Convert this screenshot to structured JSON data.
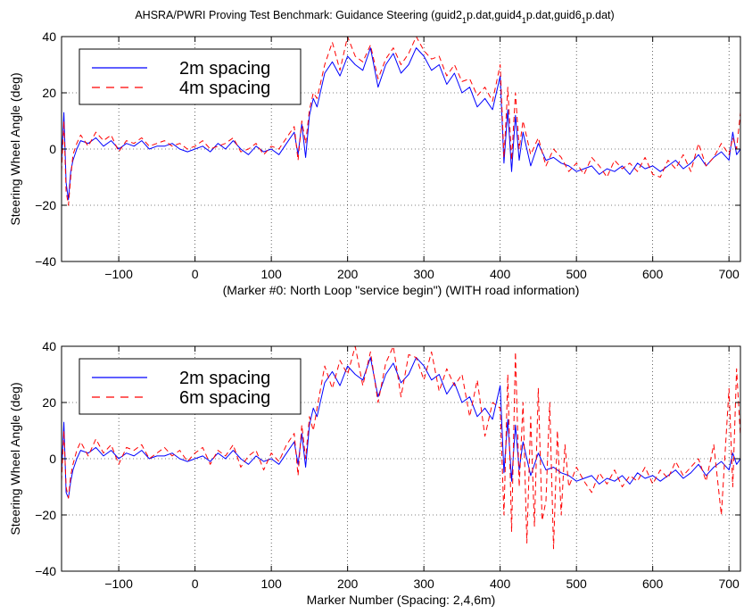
{
  "figure": {
    "title_parts": [
      "AHSRA/PWRI Proving Test Benchmark: Guidance Steering (guid2",
      "1",
      "p.dat,guid4",
      "1",
      "p.dat,guid6",
      "1",
      "p.dat)"
    ]
  },
  "chart_data": [
    {
      "type": "line",
      "xlabel": "(Marker #0: North Loop \"service begin\") (WITH road information)",
      "ylabel": "Steering Wheel Angle (deg)",
      "xlim": [
        -175,
        715
      ],
      "ylim": [
        -40,
        40
      ],
      "xticks": [
        -100,
        0,
        100,
        200,
        300,
        400,
        500,
        600,
        700
      ],
      "yticks": [
        -40,
        -20,
        0,
        20,
        40
      ],
      "tick_labels_x": [
        "−100",
        "0",
        "100",
        "200",
        "300",
        "400",
        "500",
        "600",
        "700"
      ],
      "tick_labels_y": [
        "−40",
        "−20",
        "0",
        "20",
        "40"
      ],
      "grid": true,
      "legend_position": "top-left",
      "series": [
        {
          "name": "2m spacing",
          "color": "#0000ff",
          "style": "solid",
          "x": [
            -175,
            -172,
            -169,
            -166,
            -163,
            -160,
            -155,
            -150,
            -140,
            -130,
            -120,
            -110,
            -100,
            -90,
            -80,
            -70,
            -60,
            -50,
            -40,
            -30,
            -20,
            -10,
            0,
            10,
            20,
            30,
            40,
            50,
            60,
            70,
            80,
            90,
            100,
            110,
            120,
            130,
            135,
            140,
            145,
            150,
            155,
            160,
            170,
            180,
            190,
            200,
            210,
            220,
            230,
            240,
            250,
            260,
            270,
            280,
            290,
            300,
            310,
            320,
            330,
            340,
            350,
            360,
            370,
            380,
            390,
            400,
            405,
            410,
            415,
            420,
            425,
            430,
            440,
            450,
            460,
            470,
            480,
            490,
            500,
            510,
            520,
            530,
            540,
            550,
            560,
            570,
            580,
            590,
            600,
            610,
            620,
            630,
            640,
            650,
            660,
            670,
            680,
            690,
            700,
            705,
            710,
            715
          ],
          "y": [
            -5,
            13,
            -12,
            -18,
            -8,
            -4,
            0,
            3,
            2,
            4,
            1,
            3,
            0,
            2,
            1,
            3,
            0,
            1,
            1,
            2,
            0,
            -1,
            0,
            1,
            -1,
            2,
            0,
            3,
            0,
            -2,
            1,
            -1,
            0,
            -2,
            2,
            6,
            -2,
            9,
            -3,
            12,
            18,
            15,
            27,
            31,
            26,
            33,
            30,
            28,
            36,
            22,
            30,
            34,
            27,
            30,
            36,
            33,
            28,
            30,
            23,
            27,
            20,
            22,
            15,
            18,
            14,
            26,
            -5,
            14,
            -8,
            12,
            -4,
            6,
            -6,
            2,
            -4,
            -3,
            -5,
            -6,
            -8,
            -7,
            -6,
            -9,
            -7,
            -8,
            -6,
            -9,
            -5,
            -7,
            -6,
            -8,
            -6,
            -4,
            -7,
            -5,
            -2,
            -6,
            -3,
            -1,
            -4,
            6,
            -2,
            0
          ]
        },
        {
          "name": "4m spacing",
          "color": "#ff0000",
          "style": "dashed",
          "x": [
            -175,
            -172,
            -169,
            -166,
            -163,
            -160,
            -155,
            -150,
            -140,
            -130,
            -120,
            -110,
            -100,
            -90,
            -80,
            -70,
            -60,
            -50,
            -40,
            -30,
            -20,
            -10,
            0,
            10,
            20,
            30,
            40,
            50,
            60,
            70,
            80,
            90,
            100,
            110,
            120,
            130,
            135,
            140,
            145,
            150,
            155,
            160,
            170,
            180,
            190,
            200,
            210,
            220,
            230,
            240,
            250,
            260,
            270,
            280,
            290,
            300,
            310,
            320,
            330,
            340,
            350,
            360,
            370,
            380,
            390,
            400,
            405,
            410,
            415,
            420,
            425,
            430,
            440,
            450,
            460,
            470,
            480,
            490,
            500,
            510,
            520,
            530,
            540,
            550,
            560,
            570,
            580,
            590,
            600,
            610,
            620,
            630,
            640,
            650,
            660,
            670,
            680,
            690,
            700,
            705,
            710,
            715
          ],
          "y": [
            -8,
            10,
            -15,
            -20,
            -10,
            -2,
            2,
            5,
            1,
            6,
            3,
            5,
            -1,
            3,
            2,
            4,
            1,
            2,
            3,
            1,
            2,
            0,
            1,
            3,
            0,
            1,
            2,
            4,
            -1,
            0,
            2,
            -2,
            1,
            0,
            4,
            8,
            -4,
            10,
            2,
            14,
            20,
            18,
            30,
            38,
            28,
            40,
            33,
            31,
            37,
            25,
            32,
            36,
            30,
            34,
            40,
            35,
            32,
            33,
            26,
            30,
            24,
            25,
            19,
            22,
            17,
            30,
            -3,
            22,
            -4,
            20,
            0,
            10,
            -2,
            4,
            -6,
            0,
            -3,
            -8,
            -5,
            -9,
            -3,
            -6,
            -10,
            -4,
            -7,
            -5,
            -8,
            -3,
            -9,
            -10,
            -4,
            -7,
            -2,
            -8,
            2,
            -6,
            -3,
            2,
            -2,
            4,
            0,
            13
          ]
        }
      ]
    },
    {
      "type": "line",
      "xlabel": "Marker Number (Spacing: 2,4,6m)",
      "ylabel": "Steering Wheel Angle (deg)",
      "xlim": [
        -175,
        715
      ],
      "ylim": [
        -40,
        40
      ],
      "xticks": [
        -100,
        0,
        100,
        200,
        300,
        400,
        500,
        600,
        700
      ],
      "yticks": [
        -40,
        -20,
        0,
        20,
        40
      ],
      "tick_labels_x": [
        "−100",
        "0",
        "100",
        "200",
        "300",
        "400",
        "500",
        "600",
        "700"
      ],
      "tick_labels_y": [
        "−40",
        "−20",
        "0",
        "20",
        "40"
      ],
      "grid": true,
      "legend_position": "top-left",
      "series": [
        {
          "name": "2m spacing",
          "color": "#0000ff",
          "style": "solid",
          "x": [
            -175,
            -172,
            -169,
            -166,
            -163,
            -160,
            -155,
            -150,
            -140,
            -130,
            -120,
            -110,
            -100,
            -90,
            -80,
            -70,
            -60,
            -50,
            -40,
            -30,
            -20,
            -10,
            0,
            10,
            20,
            30,
            40,
            50,
            60,
            70,
            80,
            90,
            100,
            110,
            120,
            130,
            135,
            140,
            145,
            150,
            155,
            160,
            170,
            180,
            190,
            200,
            210,
            220,
            230,
            240,
            250,
            260,
            270,
            280,
            290,
            300,
            310,
            320,
            330,
            340,
            350,
            360,
            370,
            380,
            390,
            400,
            405,
            410,
            415,
            420,
            425,
            430,
            440,
            450,
            460,
            470,
            480,
            490,
            500,
            510,
            520,
            530,
            540,
            550,
            560,
            570,
            580,
            590,
            600,
            610,
            620,
            630,
            640,
            650,
            660,
            670,
            680,
            690,
            700,
            705,
            710,
            715
          ],
          "y": [
            -5,
            13,
            -12,
            -14,
            -8,
            -4,
            0,
            3,
            2,
            4,
            1,
            3,
            0,
            2,
            1,
            3,
            0,
            1,
            1,
            2,
            0,
            -1,
            0,
            1,
            -1,
            2,
            0,
            3,
            0,
            -2,
            1,
            -1,
            0,
            -2,
            2,
            6,
            -2,
            9,
            -3,
            12,
            18,
            15,
            27,
            31,
            26,
            33,
            30,
            28,
            36,
            22,
            30,
            34,
            27,
            30,
            36,
            33,
            28,
            30,
            23,
            27,
            20,
            22,
            15,
            18,
            14,
            26,
            -5,
            14,
            -8,
            12,
            -4,
            6,
            -6,
            2,
            -4,
            -3,
            -5,
            -6,
            -8,
            -7,
            -6,
            -9,
            -7,
            -8,
            -6,
            -9,
            -5,
            -7,
            -6,
            -8,
            -6,
            -4,
            -7,
            -5,
            -2,
            -6,
            -3,
            -1,
            -4,
            2,
            -2,
            0
          ]
        },
        {
          "name": "6m spacing",
          "color": "#ff0000",
          "style": "dashed",
          "x": [
            -175,
            -172,
            -169,
            -166,
            -163,
            -160,
            -155,
            -150,
            -140,
            -130,
            -120,
            -110,
            -100,
            -90,
            -80,
            -70,
            -60,
            -50,
            -40,
            -30,
            -20,
            -10,
            0,
            10,
            20,
            30,
            40,
            50,
            60,
            70,
            80,
            90,
            100,
            110,
            120,
            130,
            135,
            140,
            145,
            150,
            155,
            160,
            170,
            180,
            190,
            200,
            210,
            220,
            230,
            240,
            250,
            260,
            270,
            280,
            290,
            300,
            310,
            320,
            330,
            340,
            350,
            360,
            370,
            380,
            390,
            400,
            405,
            410,
            415,
            420,
            425,
            430,
            435,
            440,
            445,
            450,
            455,
            460,
            465,
            470,
            475,
            480,
            485,
            490,
            500,
            510,
            520,
            530,
            540,
            550,
            560,
            570,
            580,
            590,
            600,
            610,
            620,
            630,
            640,
            650,
            660,
            670,
            680,
            690,
            700,
            705,
            710,
            715
          ],
          "y": [
            -8,
            10,
            -10,
            -14,
            -6,
            -2,
            3,
            6,
            1,
            7,
            2,
            5,
            -2,
            4,
            3,
            5,
            0,
            2,
            4,
            1,
            3,
            -1,
            2,
            4,
            -2,
            3,
            1,
            5,
            -3,
            1,
            3,
            -4,
            2,
            -1,
            5,
            9,
            -6,
            12,
            0,
            15,
            10,
            18,
            33,
            25,
            35,
            30,
            40,
            26,
            38,
            20,
            34,
            40,
            22,
            37,
            36,
            28,
            38,
            24,
            32,
            26,
            30,
            15,
            28,
            8,
            20,
            18,
            -20,
            30,
            -26,
            38,
            -10,
            20,
            -30,
            15,
            -24,
            25,
            -22,
            -15,
            20,
            -32,
            10,
            -20,
            5,
            -10,
            -3,
            -8,
            -12,
            -5,
            -9,
            -4,
            -10,
            -6,
            -8,
            -3,
            -9,
            -4,
            -7,
            -1,
            -6,
            -3,
            0,
            -8,
            5,
            -20,
            25,
            -10,
            32,
            8
          ]
        }
      ]
    }
  ]
}
